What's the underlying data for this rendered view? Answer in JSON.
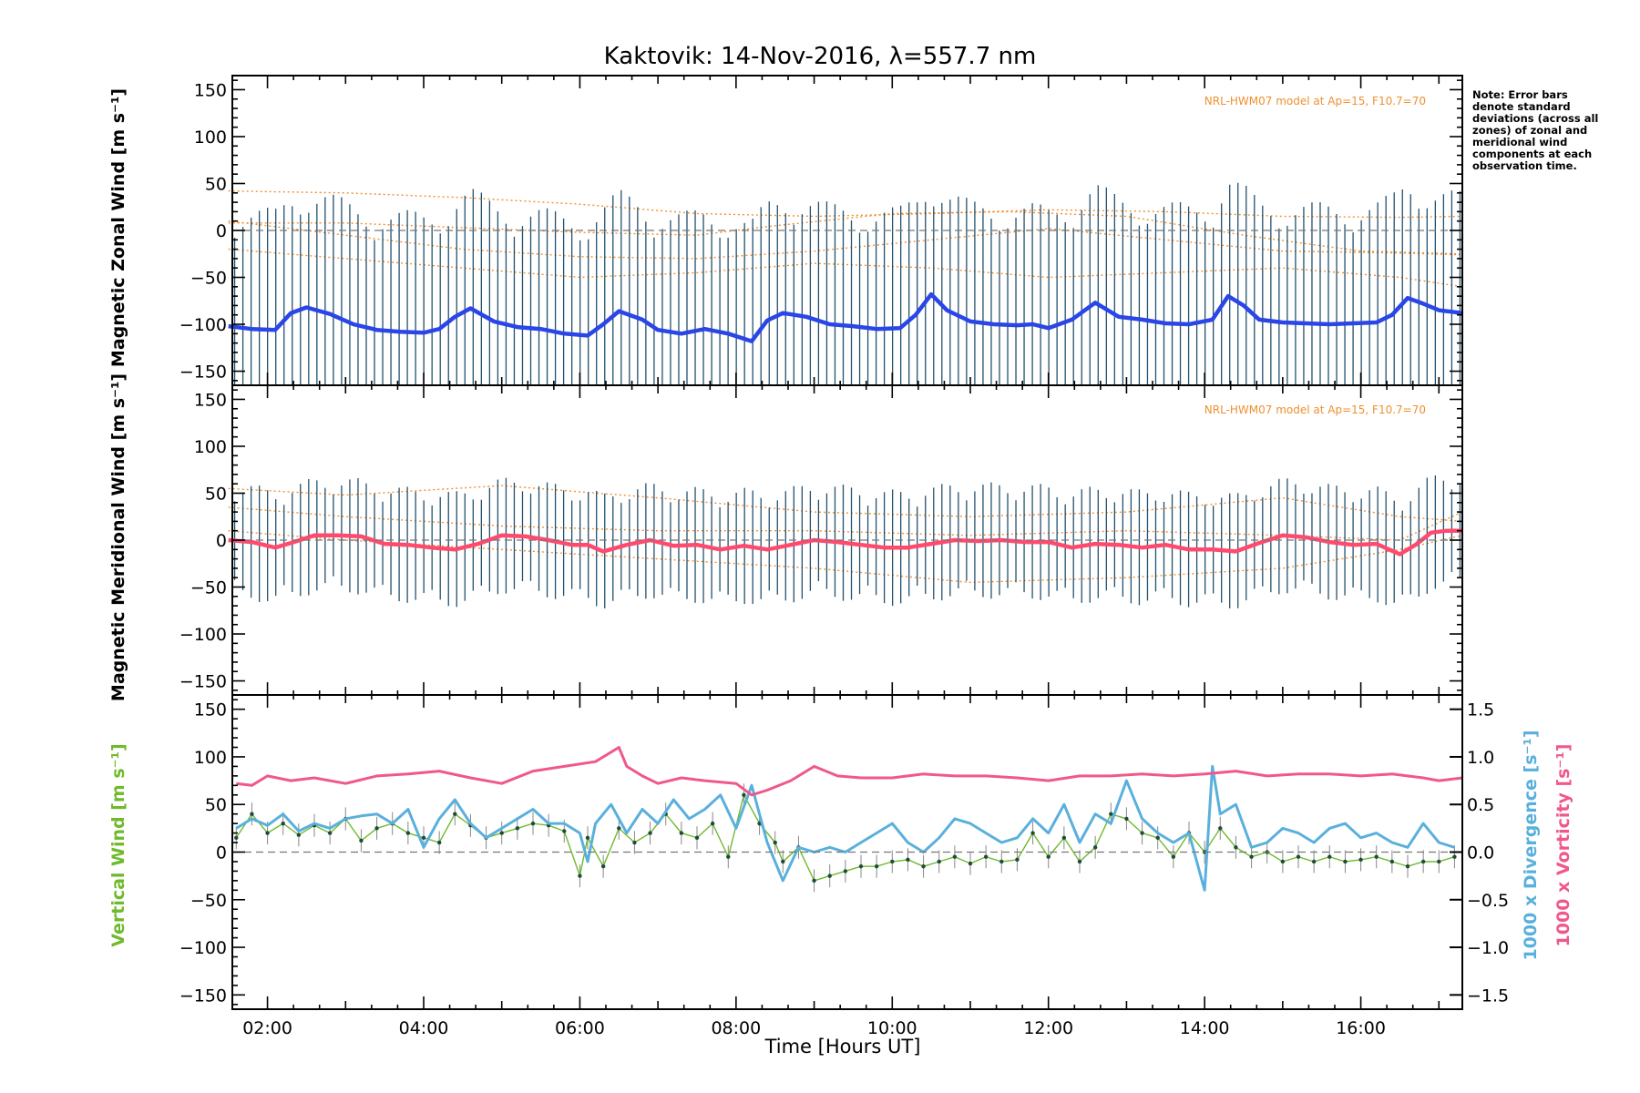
{
  "title": "Kaktovik: 14-Nov-2016, λ=557.7 nm",
  "note": "Note: Error bars denote standard deviations (across all zones) of zonal and meridional wind components at each observation time.",
  "colors": {
    "zonal": "#2a45e8",
    "zonal_light": "#66b2e6",
    "meridional": "#ff4a6e",
    "vertical_label": "#6fba2c",
    "divergence": "#5ab0dc",
    "vorticity": "#f0588a",
    "model": "#f09030",
    "errorbar": "#24506e"
  },
  "chart_data": [
    {
      "type": "line",
      "panel": "zonal",
      "ylabel": "Magnetic Zonal Wind [m s⁻¹]",
      "ylim": [
        -165,
        165
      ],
      "yticks": [
        150,
        100,
        50,
        0,
        -50,
        -100,
        -150
      ],
      "model_label": "NRL-HWM07 model at Ap=15, F10.7=70",
      "series": [
        {
          "x": [
            1.5,
            1.8,
            2.1,
            2.3,
            2.5,
            2.8,
            3.1,
            3.4,
            3.7,
            4.0,
            4.2,
            4.4,
            4.6,
            4.9,
            5.2,
            5.5,
            5.8,
            6.1,
            6.3,
            6.5,
            6.8,
            7.0,
            7.3,
            7.6,
            7.9,
            8.2,
            8.4,
            8.6,
            8.9,
            9.2,
            9.5,
            9.8,
            10.1,
            10.3,
            10.5,
            10.7,
            11.0,
            11.3,
            11.6,
            11.8,
            12.0,
            12.3,
            12.6,
            12.9,
            13.2,
            13.5,
            13.8,
            14.1,
            14.3,
            14.5,
            14.7,
            15.0,
            15.3,
            15.6,
            15.9,
            16.2,
            16.4,
            16.6,
            16.8,
            17.0,
            17.3
          ],
          "y": [
            -102,
            -105,
            -106,
            -88,
            -82,
            -89,
            -100,
            -106,
            -108,
            -109,
            -105,
            -92,
            -83,
            -97,
            -103,
            -105,
            -110,
            -112,
            -100,
            -86,
            -95,
            -106,
            -110,
            -105,
            -110,
            -118,
            -96,
            -88,
            -92,
            -100,
            -102,
            -105,
            -104,
            -90,
            -68,
            -85,
            -97,
            -100,
            -101,
            -100,
            -104,
            -95,
            -77,
            -92,
            -95,
            -99,
            -100,
            -95,
            -70,
            -80,
            -95,
            -98,
            -99,
            -100,
            -99,
            -98,
            -90,
            -72,
            -78,
            -85,
            -88
          ]
        }
      ],
      "model_curves": [
        {
          "x": [
            1.5,
            3,
            4.5,
            6,
            7.5,
            9,
            10.5,
            12,
            13.5,
            15,
            16.5,
            17.3
          ],
          "y": [
            42,
            40,
            35,
            28,
            18,
            15,
            18,
            22,
            20,
            15,
            14,
            15
          ]
        },
        {
          "x": [
            1.5,
            3,
            4.5,
            6,
            7.5,
            8.5,
            10,
            11.5,
            13,
            14.5,
            16,
            17.3
          ],
          "y": [
            8,
            8,
            3,
            -2,
            -5,
            5,
            18,
            20,
            15,
            -5,
            -22,
            -25
          ]
        },
        {
          "x": [
            1.5,
            3,
            4.5,
            6,
            7.5,
            9,
            10.5,
            12,
            13.5,
            15,
            16.5,
            17.3
          ],
          "y": [
            10,
            -5,
            -20,
            -28,
            -30,
            -22,
            -10,
            2,
            -10,
            -22,
            -24,
            -26
          ]
        },
        {
          "x": [
            1.5,
            3,
            4.5,
            6,
            7.5,
            9,
            10.5,
            12,
            13.5,
            15,
            16.5,
            17.3
          ],
          "y": [
            -20,
            -30,
            -40,
            -50,
            -45,
            -35,
            -40,
            -50,
            -45,
            -40,
            -50,
            -60
          ]
        }
      ]
    },
    {
      "type": "line",
      "panel": "meridional",
      "ylabel": "Magnetic Meridional Wind [m s⁻¹]",
      "ylim": [
        -165,
        165
      ],
      "yticks": [
        150,
        100,
        50,
        0,
        -50,
        -100,
        -150
      ],
      "model_label": "NRL-HWM07 model at Ap=15, F10.7=70",
      "series": [
        {
          "x": [
            1.5,
            1.8,
            2.1,
            2.3,
            2.6,
            2.9,
            3.2,
            3.5,
            3.8,
            4.1,
            4.4,
            4.7,
            5.0,
            5.3,
            5.6,
            5.9,
            6.1,
            6.3,
            6.6,
            6.9,
            7.2,
            7.5,
            7.8,
            8.1,
            8.4,
            8.7,
            9.0,
            9.3,
            9.6,
            9.9,
            10.2,
            10.5,
            10.8,
            11.1,
            11.4,
            11.7,
            12.0,
            12.3,
            12.6,
            12.9,
            13.2,
            13.5,
            13.8,
            14.1,
            14.4,
            14.7,
            15.0,
            15.3,
            15.6,
            15.9,
            16.2,
            16.5,
            16.7,
            16.9,
            17.1,
            17.3
          ],
          "y": [
            0,
            -2,
            -8,
            -3,
            5,
            5,
            4,
            -4,
            -5,
            -8,
            -10,
            -4,
            5,
            4,
            0,
            -5,
            -5,
            -12,
            -5,
            0,
            -6,
            -5,
            -10,
            -6,
            -10,
            -5,
            0,
            -2,
            -5,
            -8,
            -8,
            -4,
            0,
            -1,
            0,
            -2,
            -2,
            -8,
            -4,
            -5,
            -8,
            -5,
            -10,
            -10,
            -12,
            -3,
            5,
            3,
            -2,
            -5,
            -4,
            -15,
            -5,
            8,
            10,
            10
          ]
        }
      ],
      "model_curves": [
        {
          "x": [
            1.5,
            3,
            5,
            7,
            9,
            11,
            13,
            15,
            16.5,
            17.3
          ],
          "y": [
            55,
            48,
            58,
            45,
            30,
            25,
            30,
            45,
            25,
            20
          ]
        },
        {
          "x": [
            1.5,
            3,
            5,
            7,
            9,
            11,
            13,
            15,
            16.5,
            17.3
          ],
          "y": [
            35,
            25,
            15,
            10,
            10,
            5,
            10,
            5,
            0,
            30
          ]
        },
        {
          "x": [
            1.5,
            3,
            5,
            7,
            9,
            11,
            13,
            15,
            16.5,
            17.3
          ],
          "y": [
            10,
            0,
            -10,
            -20,
            -30,
            -45,
            -40,
            -30,
            -10,
            5
          ]
        }
      ]
    },
    {
      "type": "line",
      "panel": "vertical",
      "ylabel": "Vertical Wind [m s⁻¹]",
      "y2label_divergence": "1000 x Divergence [s⁻¹]",
      "y2label_vorticity": "1000 x Vorticity [s⁻¹]",
      "ylim": [
        -165,
        165
      ],
      "yticks": [
        150,
        100,
        50,
        0,
        -50,
        -100,
        -150
      ],
      "y2lim": [
        -1.65,
        1.65
      ],
      "y2ticks": [
        1.5,
        1.0,
        0.5,
        0.0,
        -0.5,
        -1.0,
        -1.5
      ],
      "y2tick_labels": [
        "1.5",
        "1.0",
        "0.5",
        "0.0",
        "−0.5",
        "−1.0",
        "−1.5"
      ],
      "xlabel": "Time [Hours UT]",
      "xlim": [
        1.55,
        17.3
      ],
      "xticks": [
        2,
        4,
        6,
        8,
        10,
        12,
        14,
        16
      ],
      "xtick_labels": [
        "02:00",
        "04:00",
        "06:00",
        "08:00",
        "10:00",
        "12:00",
        "14:00",
        "16:00"
      ],
      "series": [
        {
          "name": "Vertical",
          "x": [
            1.6,
            1.8,
            2.0,
            2.2,
            2.4,
            2.6,
            2.8,
            3.0,
            3.2,
            3.4,
            3.6,
            3.8,
            4.0,
            4.2,
            4.4,
            4.6,
            4.8,
            5.0,
            5.2,
            5.4,
            5.6,
            5.8,
            6.0,
            6.1,
            6.3,
            6.5,
            6.7,
            6.9,
            7.1,
            7.3,
            7.5,
            7.7,
            7.9,
            8.1,
            8.3,
            8.5,
            8.6,
            8.8,
            9.0,
            9.2,
            9.4,
            9.6,
            9.8,
            10.0,
            10.2,
            10.4,
            10.6,
            10.8,
            11.0,
            11.2,
            11.4,
            11.6,
            11.8,
            12.0,
            12.2,
            12.4,
            12.6,
            12.8,
            13.0,
            13.2,
            13.4,
            13.6,
            13.8,
            14.0,
            14.2,
            14.4,
            14.6,
            14.8,
            15.0,
            15.2,
            15.4,
            15.6,
            15.8,
            16.0,
            16.2,
            16.4,
            16.6,
            16.8,
            17.0,
            17.2
          ],
          "y": [
            15,
            40,
            20,
            30,
            18,
            28,
            20,
            35,
            12,
            25,
            30,
            20,
            15,
            10,
            40,
            28,
            15,
            20,
            25,
            30,
            28,
            22,
            -25,
            15,
            -15,
            25,
            10,
            20,
            40,
            20,
            15,
            30,
            -5,
            60,
            30,
            10,
            -10,
            5,
            -30,
            -25,
            -20,
            -15,
            -15,
            -10,
            -8,
            -15,
            -10,
            -5,
            -12,
            -5,
            -10,
            -8,
            20,
            -5,
            15,
            -10,
            5,
            40,
            35,
            20,
            15,
            -5,
            20,
            0,
            25,
            5,
            -5,
            0,
            -10,
            -5,
            -10,
            -5,
            -10,
            -8,
            -5,
            -10,
            -15,
            -10,
            -10,
            -5
          ]
        },
        {
          "name": "1000 x Divergence",
          "x": [
            1.6,
            1.8,
            2.0,
            2.2,
            2.4,
            2.6,
            2.8,
            3.0,
            3.2,
            3.4,
            3.6,
            3.8,
            4.0,
            4.2,
            4.4,
            4.6,
            4.8,
            5.0,
            5.2,
            5.4,
            5.6,
            5.8,
            6.0,
            6.1,
            6.2,
            6.4,
            6.6,
            6.8,
            7.0,
            7.2,
            7.4,
            7.6,
            7.8,
            8.0,
            8.2,
            8.4,
            8.6,
            8.8,
            9.0,
            9.2,
            9.4,
            9.6,
            9.8,
            10.0,
            10.2,
            10.4,
            10.6,
            10.8,
            11.0,
            11.2,
            11.4,
            11.6,
            11.8,
            12.0,
            12.2,
            12.4,
            12.6,
            12.8,
            13.0,
            13.2,
            13.4,
            13.6,
            13.8,
            14.0,
            14.1,
            14.2,
            14.4,
            14.6,
            14.8,
            15.0,
            15.2,
            15.4,
            15.6,
            15.8,
            16.0,
            16.2,
            16.4,
            16.6,
            16.8,
            17.0,
            17.2
          ],
          "y": [
            0.25,
            0.35,
            0.28,
            0.4,
            0.22,
            0.3,
            0.25,
            0.35,
            0.38,
            0.4,
            0.3,
            0.45,
            0.05,
            0.35,
            0.55,
            0.3,
            0.15,
            0.25,
            0.35,
            0.45,
            0.3,
            0.3,
            0.2,
            -0.1,
            0.3,
            0.5,
            0.2,
            0.45,
            0.3,
            0.55,
            0.35,
            0.45,
            0.6,
            0.25,
            0.7,
            0.1,
            -0.3,
            0.05,
            0.0,
            0.05,
            0.0,
            0.1,
            0.2,
            0.3,
            0.1,
            0.0,
            0.15,
            0.35,
            0.3,
            0.2,
            0.1,
            0.15,
            0.35,
            0.2,
            0.5,
            0.1,
            0.4,
            0.3,
            0.75,
            0.35,
            0.2,
            0.1,
            0.2,
            -0.4,
            0.9,
            0.4,
            0.5,
            0.05,
            0.1,
            0.25,
            0.2,
            0.1,
            0.25,
            0.3,
            0.15,
            0.2,
            0.1,
            0.05,
            0.3,
            0.1,
            0.05
          ]
        },
        {
          "name": "1000 x Vorticity",
          "x": [
            1.6,
            1.8,
            2.0,
            2.3,
            2.6,
            3.0,
            3.4,
            3.8,
            4.2,
            4.6,
            5.0,
            5.4,
            5.8,
            6.2,
            6.5,
            6.6,
            6.8,
            7.0,
            7.3,
            7.6,
            8.0,
            8.2,
            8.4,
            8.7,
            9.0,
            9.3,
            9.6,
            10.0,
            10.4,
            10.8,
            11.2,
            11.6,
            12.0,
            12.4,
            12.8,
            13.2,
            13.6,
            14.0,
            14.4,
            14.8,
            15.2,
            15.6,
            16.0,
            16.4,
            16.8,
            17.0,
            17.3
          ],
          "y": [
            0.72,
            0.7,
            0.8,
            0.75,
            0.78,
            0.72,
            0.8,
            0.82,
            0.85,
            0.78,
            0.72,
            0.85,
            0.9,
            0.95,
            1.1,
            0.9,
            0.8,
            0.72,
            0.78,
            0.75,
            0.72,
            0.6,
            0.65,
            0.75,
            0.9,
            0.8,
            0.78,
            0.78,
            0.82,
            0.8,
            0.8,
            0.78,
            0.75,
            0.8,
            0.8,
            0.82,
            0.8,
            0.82,
            0.85,
            0.8,
            0.82,
            0.82,
            0.8,
            0.82,
            0.78,
            0.75,
            0.78
          ]
        }
      ]
    }
  ]
}
